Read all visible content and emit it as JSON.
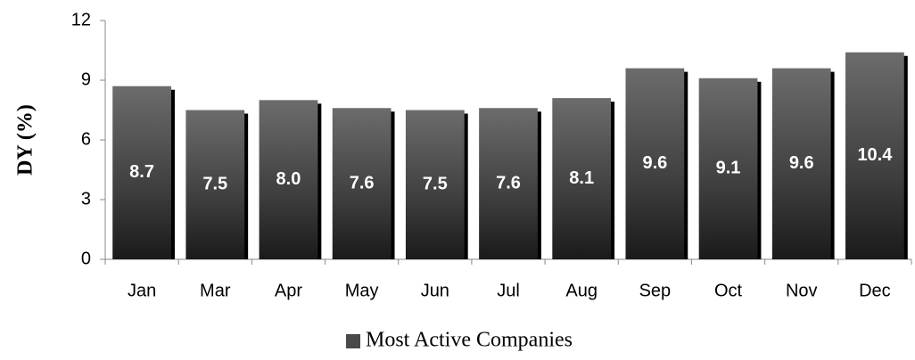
{
  "chart_data": {
    "type": "bar",
    "y_label": "DY (%)",
    "categories": [
      "Jan",
      "Mar",
      "Apr",
      "May",
      "Jun",
      "Jul",
      "Aug",
      "Sep",
      "Oct",
      "Nov",
      "Dec"
    ],
    "series": [
      {
        "name": "Most Active Companies",
        "color": "#4a4a4a",
        "values": [
          8.7,
          7.5,
          8.0,
          7.6,
          7.5,
          7.6,
          8.1,
          9.6,
          9.1,
          9.6,
          10.4
        ],
        "value_labels": [
          "8.7",
          "7.5",
          "8.0",
          "7.6",
          "7.5",
          "7.6",
          "8.1",
          "9.6",
          "9.1",
          "9.6",
          "10.4"
        ]
      }
    ],
    "ylim": [
      0,
      12
    ],
    "yticks": [
      0,
      3,
      6,
      9,
      12
    ],
    "grid": false,
    "legend": "bottom"
  }
}
